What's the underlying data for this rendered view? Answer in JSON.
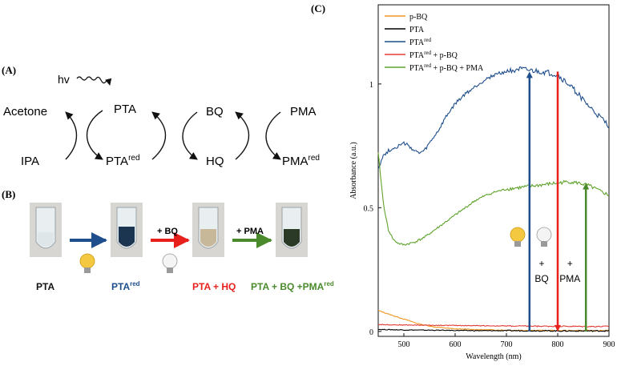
{
  "panels": {
    "a": {
      "label": "(A)"
    },
    "b": {
      "label": "(B)"
    },
    "c": {
      "label": "(C)"
    }
  },
  "scheme": {
    "hv": "hv",
    "acetone": "Acetone",
    "ipa": "IPA",
    "pta": "PTA",
    "pta_red_base": "PTA",
    "pta_red_sup": "red",
    "bq": "BQ",
    "hq": "HQ",
    "pma": "PMA",
    "pma_red_base": "PMA",
    "pma_red_sup": "red"
  },
  "photos": {
    "step1_base": "PTA",
    "step2_base": "PTA",
    "step2_sup": "red",
    "step3": "PTA + HQ",
    "step4_base": "PTA + BQ +PMA",
    "step4_sup": "red",
    "arrow_bq": "+ BQ",
    "arrow_pma": "+ PMA",
    "colors": {
      "blue": "#1f4e8c",
      "red": "#e8201c",
      "green": "#4a8a2c",
      "tube_blue": "#1b3550",
      "tube_beige": "#c8b89a",
      "tube_green": "#2a3a26"
    }
  },
  "chart_data": {
    "type": "line",
    "xlabel": "Wavelength (nm)",
    "ylabel": "Absorbance (a.u.)",
    "xlim": [
      450,
      900
    ],
    "ylim": [
      -0.02,
      1.32
    ],
    "xticks": [
      500,
      600,
      700,
      800,
      900
    ],
    "yticks": [
      0,
      0.5,
      1
    ],
    "ytick_labels": [
      "0",
      "0.5",
      "1"
    ],
    "xtick_labels": [
      "500",
      "600",
      "700",
      "800",
      "900"
    ],
    "legend": {
      "placement": "top-left"
    },
    "series": [
      {
        "name": "p-BQ",
        "label_base": "p-BQ",
        "label_sup": "",
        "label_tail": "",
        "color": "#f0961e",
        "x": [
          450,
          470,
          500,
          530,
          560,
          600,
          650,
          700,
          750,
          800,
          850,
          900
        ],
        "y": [
          0.085,
          0.07,
          0.05,
          0.03,
          0.018,
          0.01,
          0.007,
          0.005,
          0.004,
          0.003,
          0.003,
          0.003
        ]
      },
      {
        "name": "PTA",
        "label_base": "PTA",
        "label_sup": "",
        "label_tail": "",
        "color": "#000000",
        "x": [
          450,
          500,
          550,
          600,
          650,
          700,
          750,
          800,
          850,
          900
        ],
        "y": [
          0.008,
          0.006,
          0.005,
          0.004,
          0.003,
          0.003,
          0.003,
          0.002,
          0.002,
          0.002
        ]
      },
      {
        "name": "PTAred",
        "label_base": "PTA",
        "label_sup": "red",
        "label_tail": "",
        "color": "#1f4e8c",
        "x": [
          450,
          460,
          470,
          480,
          490,
          500,
          510,
          520,
          530,
          540,
          550,
          560,
          570,
          580,
          590,
          600,
          620,
          640,
          660,
          680,
          700,
          720,
          740,
          760,
          780,
          800,
          820,
          840,
          860,
          880,
          900
        ],
        "y": [
          0.66,
          0.71,
          0.73,
          0.74,
          0.75,
          0.76,
          0.75,
          0.73,
          0.72,
          0.73,
          0.76,
          0.79,
          0.82,
          0.86,
          0.89,
          0.92,
          0.96,
          0.99,
          1.02,
          1.04,
          1.05,
          1.06,
          1.055,
          1.05,
          1.045,
          1.035,
          1.0,
          0.96,
          0.91,
          0.87,
          0.83
        ]
      },
      {
        "name": "PTAred + p-BQ",
        "label_base": "PTA",
        "label_sup": "red",
        "label_tail": " + p-BQ",
        "color": "#e23b36",
        "x": [
          450,
          500,
          550,
          600,
          650,
          700,
          750,
          800,
          850,
          900
        ],
        "y": [
          0.028,
          0.026,
          0.025,
          0.024,
          0.023,
          0.022,
          0.021,
          0.021,
          0.02,
          0.02
        ]
      },
      {
        "name": "PTAred + p-BQ + PMA",
        "label_base": "PTA",
        "label_sup": "red",
        "label_tail": " + p-BQ + PMA",
        "color": "#5fa32c",
        "x": [
          450,
          455,
          460,
          465,
          470,
          480,
          490,
          500,
          510,
          520,
          540,
          560,
          580,
          600,
          620,
          640,
          660,
          680,
          700,
          720,
          740,
          760,
          780,
          800,
          820,
          840,
          860,
          880,
          900
        ],
        "y": [
          0.72,
          0.62,
          0.52,
          0.46,
          0.41,
          0.37,
          0.355,
          0.35,
          0.355,
          0.36,
          0.38,
          0.41,
          0.44,
          0.47,
          0.5,
          0.53,
          0.55,
          0.565,
          0.575,
          0.58,
          0.585,
          0.59,
          0.595,
          0.6,
          0.605,
          0.6,
          0.59,
          0.57,
          0.55
        ]
      }
    ],
    "annotations": [
      {
        "name": "light-on",
        "x": 745,
        "y_from": 0.0,
        "y_to": 1.05,
        "color": "#1f4e8c",
        "label": ""
      },
      {
        "name": "add-bq",
        "x": 800,
        "y_from": 1.05,
        "y_to": 0.0,
        "color": "#e8201c",
        "label_line1": "+",
        "label_line2": "BQ"
      },
      {
        "name": "add-pma",
        "x": 855,
        "y_from": 0.0,
        "y_to": 0.6,
        "color": "#4a8a2c",
        "label_line1": "+",
        "label_line2": "PMA"
      }
    ]
  }
}
